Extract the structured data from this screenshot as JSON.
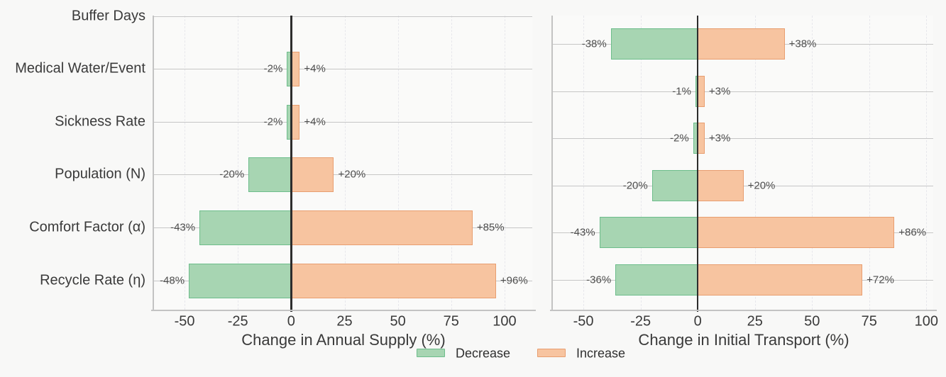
{
  "figure": {
    "background": "#f8f8f7",
    "colors": {
      "decrease_fill": "#a7d5b2",
      "decrease_edge": "#6dbd8b",
      "increase_fill": "#f7c4a0",
      "increase_edge": "#e89e70",
      "zero_line": "#2d2d2d",
      "grid_row": "#c6c6c6",
      "grid_dashed": "#e7e7ec",
      "spine": "#c3c3c3",
      "text": "#3a3a3a",
      "value_label": "#4f4f4f"
    }
  },
  "legend": {
    "position": "bottom-center",
    "items": [
      {
        "label": "Decrease",
        "color_key": "decrease"
      },
      {
        "label": "Increase",
        "color_key": "increase"
      }
    ]
  },
  "chart_data": [
    {
      "type": "bar",
      "variant": "tornado",
      "orientation": "horizontal",
      "xlabel": "Change in Annual Supply (%)",
      "categories": [
        "Buffer Days",
        "Medical Water/Event",
        "Sickness Rate",
        "Population (N)",
        "Comfort Factor (α)",
        "Recycle Rate (η)"
      ],
      "series": [
        {
          "name": "Decrease",
          "values": [
            null,
            -2,
            -2,
            -20,
            -43,
            -48
          ]
        },
        {
          "name": "Increase",
          "values": [
            null,
            4,
            4,
            20,
            85,
            96
          ]
        }
      ],
      "value_label_format": "signed percent",
      "xticks": [
        -50,
        -25,
        0,
        25,
        50,
        75,
        100
      ],
      "xlim": [
        -65,
        113
      ],
      "grid": true,
      "show_category_labels": true
    },
    {
      "type": "bar",
      "variant": "tornado",
      "orientation": "horizontal",
      "xlabel": "Change in Initial Transport (%)",
      "categories": [
        "Buffer Days",
        "Medical Water/Event",
        "Sickness Rate",
        "Population (N)",
        "Comfort Factor (α)",
        "Recycle Rate (η)"
      ],
      "series": [
        {
          "name": "Decrease",
          "values": [
            -38,
            -1,
            -2,
            -20,
            -43,
            -36
          ]
        },
        {
          "name": "Increase",
          "values": [
            38,
            3,
            3,
            20,
            86,
            72
          ]
        }
      ],
      "value_label_format": "signed percent",
      "xticks": [
        -50,
        -25,
        0,
        25,
        50,
        75,
        100
      ],
      "xlim": [
        -64,
        103
      ],
      "grid": true,
      "show_category_labels": false
    }
  ]
}
